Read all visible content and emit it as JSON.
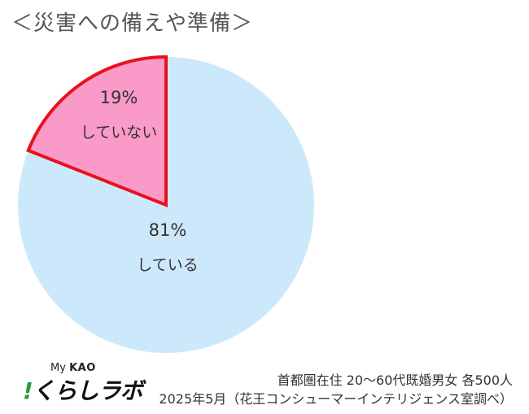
{
  "title": "＜災害への備えや準備＞",
  "chart_data": {
    "type": "pie",
    "slices": [
      {
        "label": "している",
        "value": 81,
        "value_label": "81%",
        "color": "#cce9fb",
        "stroke": "none"
      },
      {
        "label": "していない",
        "value": 19,
        "value_label": "19%",
        "color": "#fa9ac8",
        "stroke": "#e8121c"
      }
    ],
    "start": "12 o'clock",
    "direction": "clockwise",
    "highlighted_slice": "していない"
  },
  "brand": {
    "line1_prefix": "My",
    "line1_name": "KAO",
    "excl": "!",
    "name": "くらしラボ"
  },
  "notes": {
    "line1": "首都圏在住 20～60代既婚男女 各500人",
    "line2": "2025年5月（花王コンシューマーインテリジェンス室調べ）"
  }
}
